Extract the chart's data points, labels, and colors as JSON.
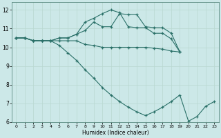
{
  "xlabel": "Humidex (Indice chaleur)",
  "xlim": [
    -0.5,
    23.5
  ],
  "ylim": [
    6,
    12.4
  ],
  "xticks": [
    0,
    1,
    2,
    3,
    4,
    5,
    6,
    7,
    8,
    9,
    10,
    11,
    12,
    13,
    14,
    15,
    16,
    17,
    18,
    19,
    20,
    21,
    22,
    23
  ],
  "yticks": [
    6,
    7,
    8,
    9,
    10,
    11,
    12
  ],
  "bg_color": "#cce8e8",
  "grid_color": "#b8d8d0",
  "line_color": "#2a7068",
  "line1_x": [
    0,
    1,
    2,
    3,
    4,
    5,
    6,
    7,
    8,
    9,
    10,
    11,
    12,
    13,
    14,
    15,
    16,
    17,
    18,
    19
  ],
  "line1_y": [
    10.5,
    10.5,
    10.35,
    10.35,
    10.35,
    10.5,
    10.5,
    10.7,
    11.35,
    11.55,
    11.8,
    12.0,
    11.85,
    11.1,
    11.05,
    11.05,
    10.75,
    10.75,
    10.45,
    9.75
  ],
  "line2_x": [
    0,
    1,
    2,
    3,
    4,
    5,
    6,
    7,
    8,
    9,
    10,
    11,
    12,
    13,
    14,
    15,
    16,
    17,
    18,
    19
  ],
  "line2_y": [
    10.5,
    10.5,
    10.35,
    10.35,
    10.35,
    10.5,
    10.5,
    10.7,
    10.9,
    11.35,
    11.1,
    11.1,
    11.8,
    11.75,
    11.75,
    11.1,
    11.05,
    11.05,
    10.75,
    9.75
  ],
  "line3_x": [
    0,
    1,
    2,
    3,
    4,
    5,
    6,
    7,
    8,
    9,
    10,
    11,
    12,
    13,
    14,
    15,
    16,
    17,
    18,
    19
  ],
  "line3_y": [
    10.5,
    10.5,
    10.35,
    10.35,
    10.35,
    10.35,
    10.35,
    10.35,
    10.15,
    10.1,
    10.0,
    10.0,
    10.0,
    10.0,
    10.0,
    10.0,
    9.95,
    9.9,
    9.8,
    9.75
  ],
  "line4_x": [
    0,
    1,
    2,
    3,
    4,
    5,
    6,
    7,
    8,
    9,
    10,
    11,
    12,
    13,
    14,
    15,
    16,
    17,
    18,
    19,
    20,
    21,
    22,
    23
  ],
  "line4_y": [
    10.5,
    10.5,
    10.35,
    10.35,
    10.35,
    10.1,
    9.7,
    9.3,
    8.8,
    8.35,
    7.85,
    7.45,
    7.1,
    6.8,
    6.55,
    6.35,
    6.55,
    6.8,
    7.1,
    7.45,
    6.05,
    6.3,
    6.85,
    7.1
  ]
}
